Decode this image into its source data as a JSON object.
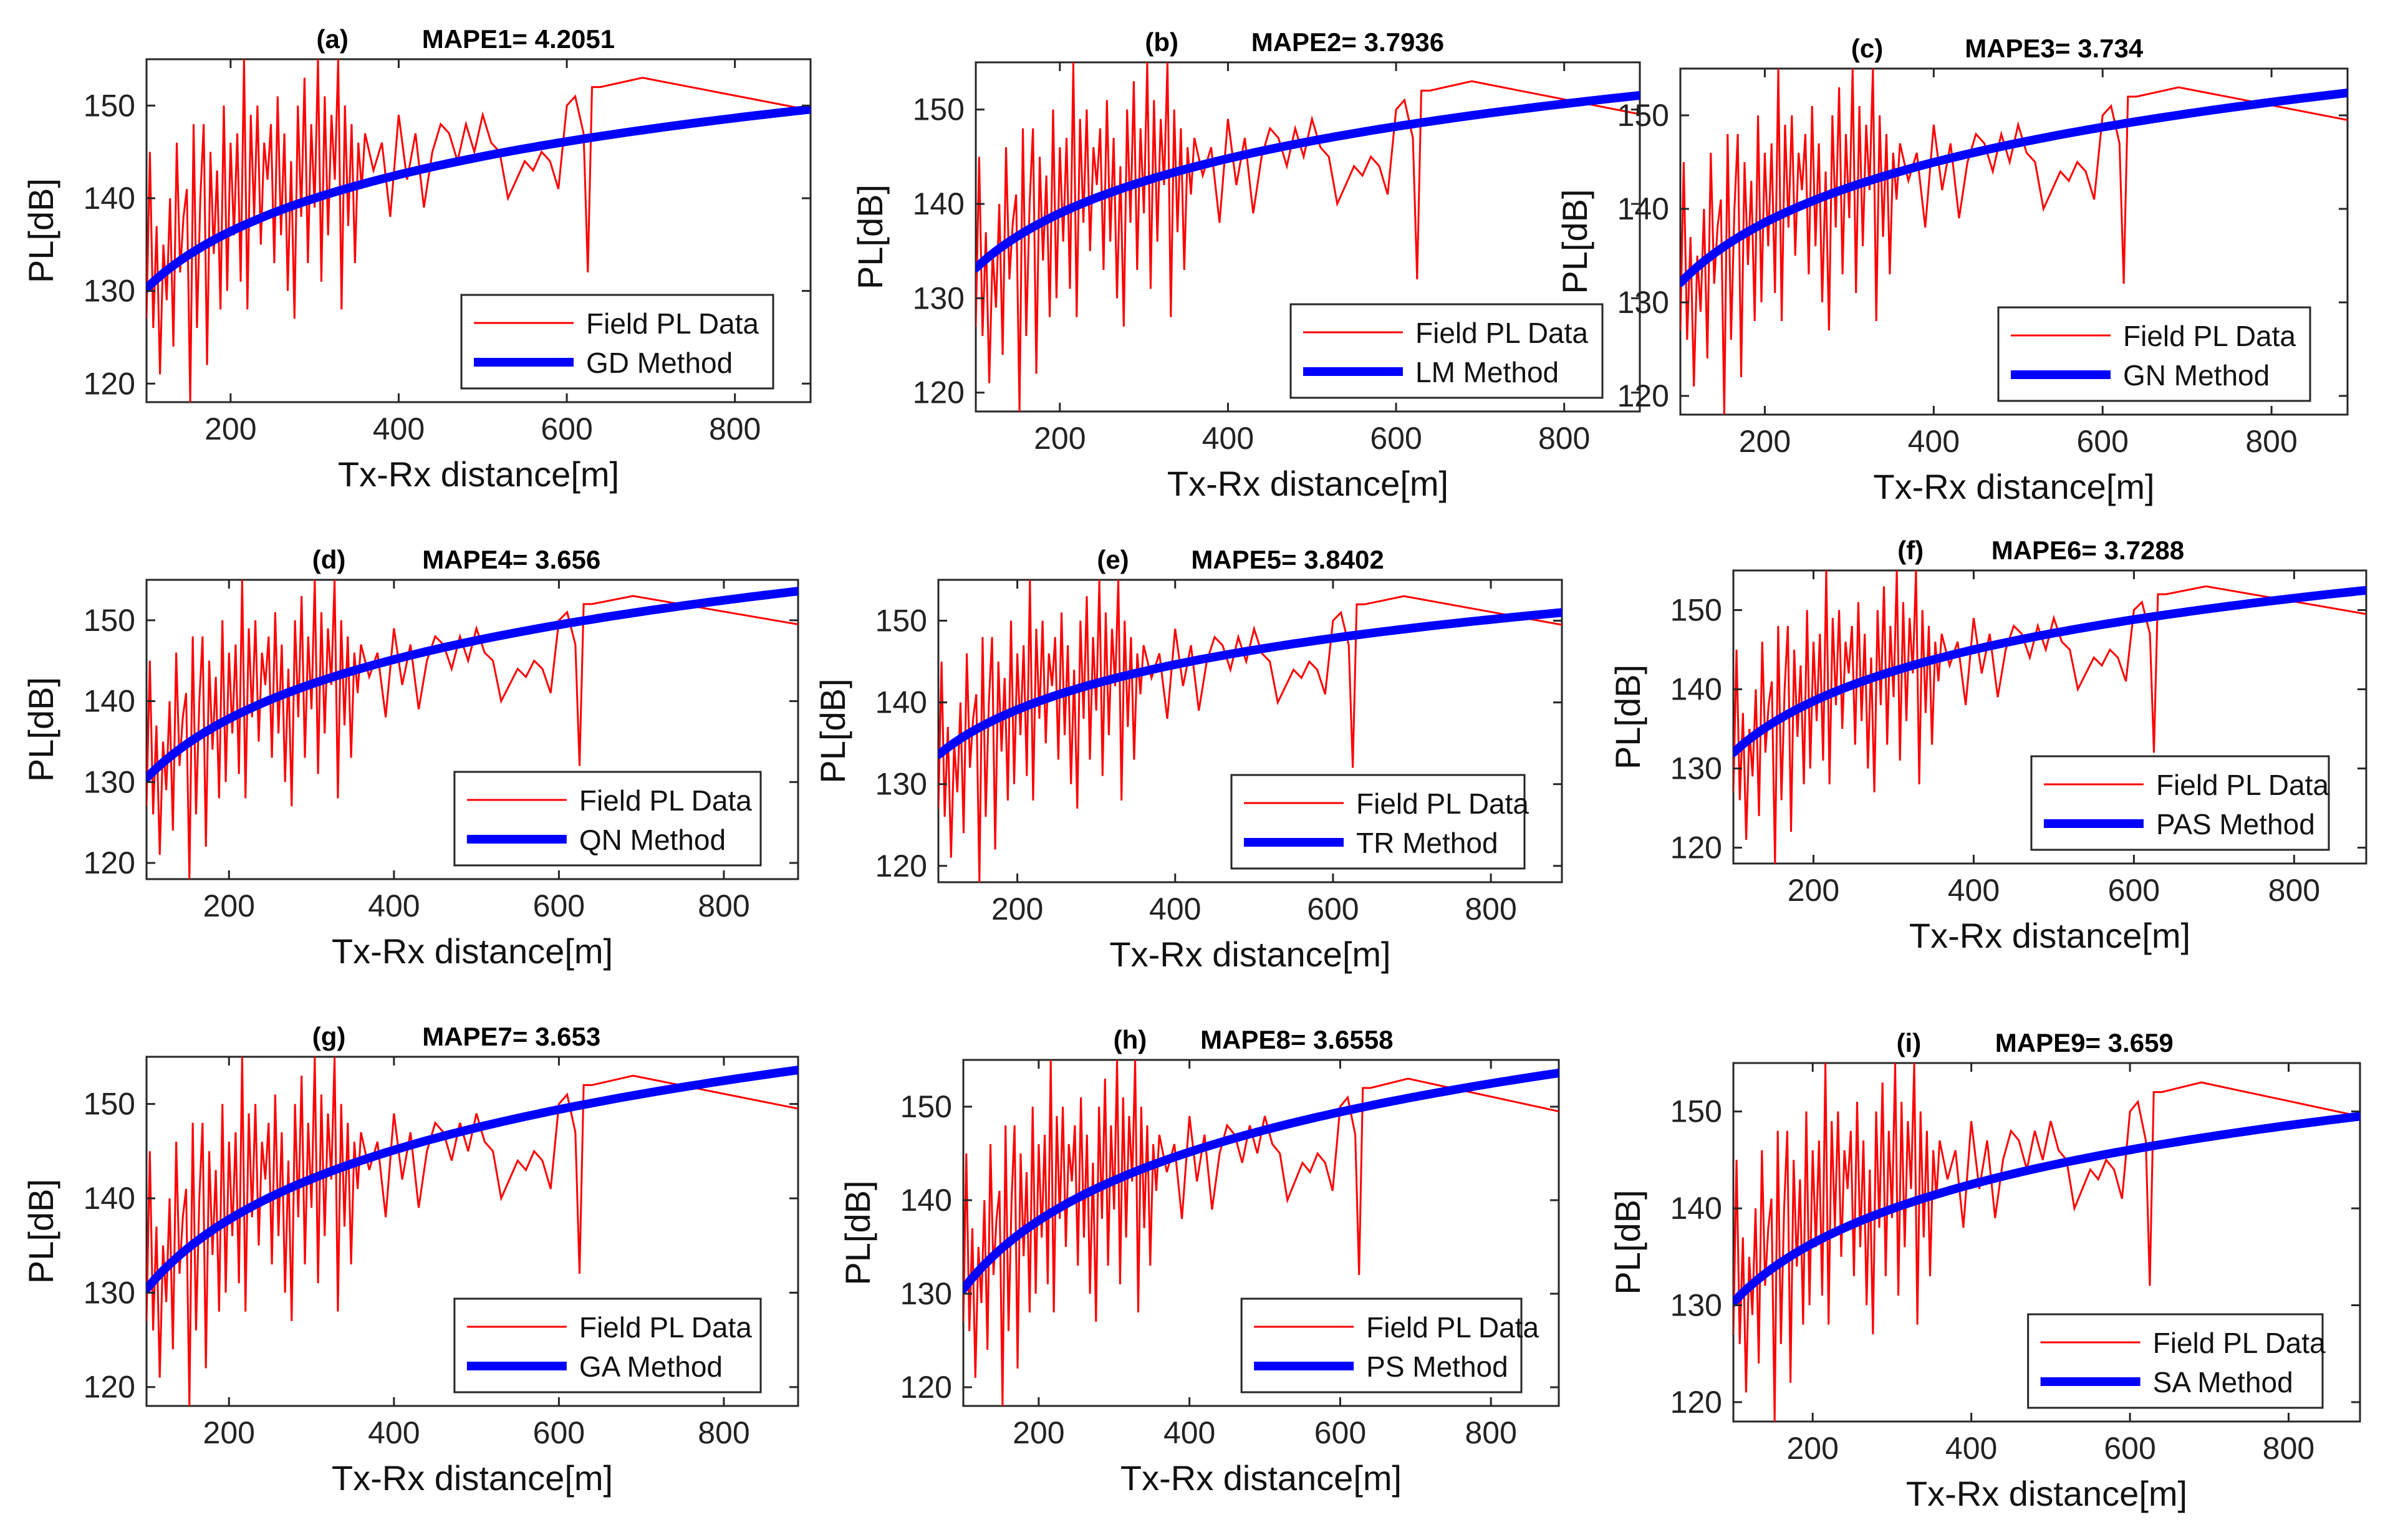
{
  "figure": {
    "description_panels": 9
  },
  "colors": {
    "field": "#ff0000",
    "fit": "#0000ff",
    "axis": "#262626"
  },
  "chart_data": [
    {
      "type": "line",
      "panel_label": "(a)",
      "mape_label": "MAPE1= 4.2051",
      "xlabel": "Tx-Rx distance[m]",
      "ylabel": "PL[dB]",
      "xlim": [
        100,
        890
      ],
      "ylim": [
        118,
        155
      ],
      "xticks": [
        200,
        400,
        600,
        800
      ],
      "yticks": [
        120,
        130,
        140,
        150
      ],
      "legend_position": "lower-right",
      "series": [
        {
          "name": "Field PL Data",
          "role": "field"
        },
        {
          "name": "GD Method",
          "role": "fit",
          "a": 130.3,
          "b": 149.6
        }
      ]
    },
    {
      "type": "line",
      "panel_label": "(b)",
      "mape_label": "MAPE2= 3.7936",
      "xlabel": "Tx-Rx distance[m]",
      "ylabel": "PL[dB]",
      "xlim": [
        100,
        890
      ],
      "ylim": [
        118,
        155
      ],
      "xticks": [
        200,
        400,
        600,
        800
      ],
      "yticks": [
        120,
        130,
        140,
        150
      ],
      "legend_position": "lower-right",
      "series": [
        {
          "name": "Field PL Data",
          "role": "field"
        },
        {
          "name": "LM Method",
          "role": "fit",
          "a": 133.2,
          "b": 151.5
        }
      ]
    },
    {
      "type": "line",
      "panel_label": "(c)",
      "mape_label": "MAPE3= 3.734",
      "xlabel": "Tx-Rx distance[m]",
      "ylabel": "PL[dB]",
      "xlim": [
        100,
        890
      ],
      "ylim": [
        118,
        155
      ],
      "xticks": [
        200,
        400,
        600,
        800
      ],
      "yticks": [
        120,
        130,
        140,
        150
      ],
      "legend_position": "lower-right",
      "series": [
        {
          "name": "Field PL Data",
          "role": "field"
        },
        {
          "name": "GN Method",
          "role": "fit",
          "a": 132.1,
          "b": 152.4
        }
      ]
    },
    {
      "type": "line",
      "panel_label": "(d)",
      "mape_label": "MAPE4= 3.656",
      "xlabel": "Tx-Rx distance[m]",
      "ylabel": "PL[dB]",
      "xlim": [
        100,
        890
      ],
      "ylim": [
        118,
        155
      ],
      "xticks": [
        200,
        400,
        600,
        800
      ],
      "yticks": [
        120,
        130,
        140,
        150
      ],
      "legend_position": "lower-right",
      "series": [
        {
          "name": "Field PL Data",
          "role": "field"
        },
        {
          "name": "QN Method",
          "role": "fit",
          "a": 130.5,
          "b": 153.6
        }
      ]
    },
    {
      "type": "line",
      "panel_label": "(e)",
      "mape_label": "MAPE5= 3.8402",
      "xlabel": "Tx-Rx distance[m]",
      "ylabel": "PL[dB]",
      "xlim": [
        100,
        890
      ],
      "ylim": [
        118,
        155
      ],
      "xticks": [
        200,
        400,
        600,
        800
      ],
      "yticks": [
        120,
        130,
        140,
        150
      ],
      "legend_position": "lower-right",
      "series": [
        {
          "name": "Field PL Data",
          "role": "field"
        },
        {
          "name": "TR Method",
          "role": "fit",
          "a": 133.6,
          "b": 151.0
        }
      ]
    },
    {
      "type": "line",
      "panel_label": "(f)",
      "mape_label": "MAPE6= 3.7288",
      "xlabel": "Tx-Rx distance[m]",
      "ylabel": "PL[dB]",
      "xlim": [
        100,
        890
      ],
      "ylim": [
        118,
        155
      ],
      "xticks": [
        200,
        400,
        600,
        800
      ],
      "yticks": [
        120,
        130,
        140,
        150
      ],
      "legend_position": "lower-right",
      "series": [
        {
          "name": "Field PL Data",
          "role": "field"
        },
        {
          "name": "PAS Method",
          "role": "fit",
          "a": 132.0,
          "b": 152.5
        }
      ]
    },
    {
      "type": "line",
      "panel_label": "(g)",
      "mape_label": "MAPE7= 3.653",
      "xlabel": "Tx-Rx distance[m]",
      "ylabel": "PL[dB]",
      "xlim": [
        100,
        890
      ],
      "ylim": [
        118,
        155
      ],
      "xticks": [
        200,
        400,
        600,
        800
      ],
      "yticks": [
        120,
        130,
        140,
        150
      ],
      "legend_position": "lower-right",
      "series": [
        {
          "name": "Field PL Data",
          "role": "field"
        },
        {
          "name": "GA Method",
          "role": "fit",
          "a": 130.4,
          "b": 153.6
        }
      ]
    },
    {
      "type": "line",
      "panel_label": "(h)",
      "mape_label": "MAPE8= 3.6558",
      "xlabel": "Tx-Rx distance[m]",
      "ylabel": "PL[dB]",
      "xlim": [
        100,
        890
      ],
      "ylim": [
        118,
        155
      ],
      "xticks": [
        200,
        400,
        600,
        800
      ],
      "yticks": [
        120,
        130,
        140,
        150
      ],
      "legend_position": "lower-right",
      "series": [
        {
          "name": "Field PL Data",
          "role": "field"
        },
        {
          "name": "PS Method",
          "role": "fit",
          "a": 130.5,
          "b": 153.6
        }
      ]
    },
    {
      "type": "line",
      "panel_label": "(i)",
      "mape_label": "MAPE9= 3.659",
      "xlabel": "Tx-Rx distance[m]",
      "ylabel": "PL[dB]",
      "xlim": [
        100,
        890
      ],
      "ylim": [
        118,
        155
      ],
      "xticks": [
        200,
        400,
        600,
        800
      ],
      "yticks": [
        120,
        130,
        140,
        150
      ],
      "legend_position": "lower-right",
      "series": [
        {
          "name": "Field PL Data",
          "role": "field"
        },
        {
          "name": "SA Method",
          "role": "fit",
          "a": 130.3,
          "b": 149.5
        }
      ]
    }
  ],
  "field_data": {
    "x": [
      100,
      104,
      108,
      112,
      116,
      120,
      124,
      128,
      132,
      136,
      140,
      144,
      148,
      152,
      156,
      160,
      164,
      168,
      172,
      176,
      180,
      184,
      188,
      192,
      196,
      200,
      204,
      208,
      212,
      216,
      220,
      224,
      228,
      232,
      236,
      240,
      244,
      248,
      252,
      256,
      260,
      264,
      268,
      272,
      276,
      280,
      284,
      288,
      292,
      296,
      300,
      304,
      308,
      312,
      316,
      320,
      324,
      328,
      332,
      336,
      340,
      344,
      348,
      352,
      356,
      360,
      370,
      380,
      390,
      400,
      410,
      420,
      430,
      440,
      450,
      460,
      470,
      480,
      490,
      500,
      510,
      520,
      530,
      540,
      550,
      560,
      570,
      580,
      590,
      600,
      610,
      620,
      625,
      630,
      640,
      690,
      890
    ],
    "y": [
      127,
      145,
      126,
      137,
      121,
      135,
      129,
      140,
      124,
      146,
      132,
      138,
      141,
      118,
      148,
      126,
      140,
      148,
      122,
      145,
      134,
      143,
      128,
      150,
      130,
      146,
      136,
      147,
      131,
      155,
      128,
      149,
      138,
      150,
      135,
      146,
      142,
      148,
      133,
      151,
      136,
      147,
      130,
      144,
      127,
      150,
      138,
      153,
      133,
      148,
      139,
      155,
      131,
      151,
      136,
      149,
      142,
      155,
      128,
      150,
      137,
      148,
      133,
      146,
      141,
      147,
      143,
      146,
      138,
      149,
      142,
      147,
      139,
      145,
      148,
      147,
      144,
      148,
      145,
      149,
      146,
      145,
      140,
      142,
      144,
      143,
      145,
      144,
      141,
      150,
      151,
      147,
      132,
      152,
      152,
      153,
      149.5
    ]
  }
}
